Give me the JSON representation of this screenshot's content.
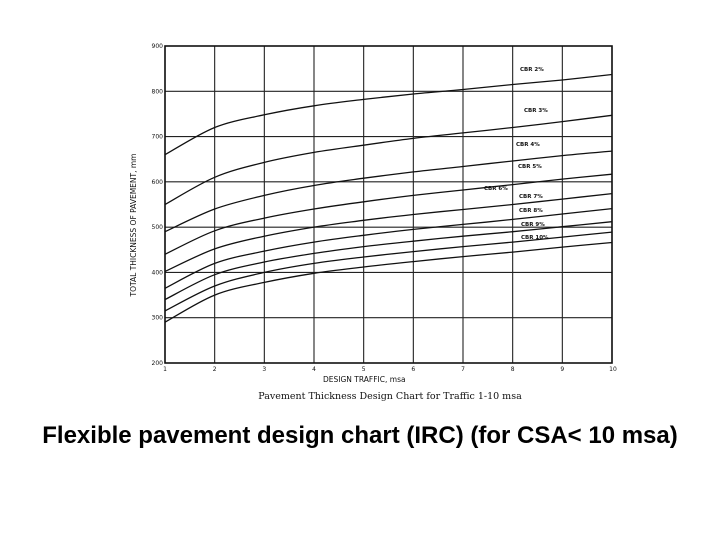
{
  "chart_data": {
    "type": "line",
    "title": "Pavement Thickness Design Chart for Traffic 1-10 msa",
    "xlabel": "DESIGN TRAFFIC, msa",
    "ylabel": "TOTAL THICKNESS OF PAVEMENT, mm",
    "xlim": [
      1,
      10
    ],
    "ylim": [
      200,
      900
    ],
    "x_ticks": [
      "1",
      "2",
      "3",
      "4",
      "5",
      "6",
      "7",
      "8",
      "9",
      "10"
    ],
    "y_ticks": [
      "200",
      "300",
      "400",
      "500",
      "600",
      "700",
      "800",
      "900"
    ],
    "grid": true,
    "x": [
      1,
      2,
      3,
      4,
      5,
      6,
      7,
      8,
      9,
      10
    ],
    "series": [
      {
        "name": "CBR 2%",
        "values": [
          660,
          720,
          748,
          768,
          782,
          794,
          804,
          815,
          825,
          837
        ]
      },
      {
        "name": "CBR 3%",
        "values": [
          550,
          610,
          643,
          665,
          681,
          696,
          708,
          720,
          733,
          747
        ]
      },
      {
        "name": "CBR 4%",
        "values": [
          490,
          540,
          570,
          592,
          608,
          622,
          634,
          646,
          658,
          668
        ]
      },
      {
        "name": "CBR 5%",
        "values": [
          440,
          492,
          520,
          540,
          556,
          570,
          582,
          594,
          606,
          617
        ]
      },
      {
        "name": "CBR 6%",
        "values": [
          402,
          452,
          480,
          500,
          515,
          528,
          539,
          550,
          562,
          574
        ]
      },
      {
        "name": "CBR 7%",
        "values": [
          365,
          420,
          447,
          467,
          482,
          495,
          506,
          517,
          529,
          541
        ]
      },
      {
        "name": "CBR 8%",
        "values": [
          340,
          395,
          423,
          442,
          457,
          469,
          480,
          490,
          501,
          512
        ]
      },
      {
        "name": "CBR 9%",
        "values": [
          315,
          370,
          400,
          420,
          434,
          446,
          457,
          467,
          478,
          489
        ]
      },
      {
        "name": "CBR 10%",
        "values": [
          290,
          350,
          378,
          398,
          412,
          424,
          435,
          445,
          456,
          466
        ]
      }
    ]
  },
  "caption": "Flexible pavement design chart (IRC) (for CSA< 10 msa)"
}
